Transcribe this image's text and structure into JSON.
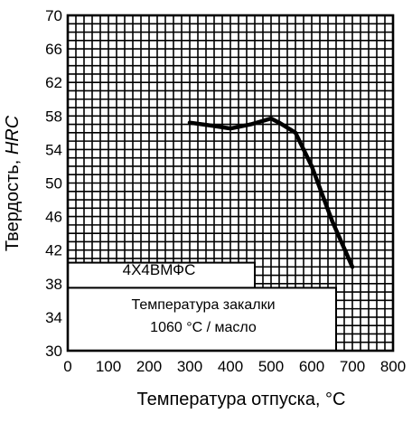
{
  "colors": {
    "background": "#ffffff",
    "ink": "#000000"
  },
  "chart_data": {
    "type": "line",
    "title": "",
    "xlabel": "Температура отпуска, °C",
    "ylabel_prefix": "Твердость, ",
    "ylabel_unit": "HRC",
    "xlim": [
      0,
      800
    ],
    "ylim": [
      30,
      70
    ],
    "x_ticks": [
      "0",
      "100",
      "200",
      "300",
      "400",
      "500",
      "600",
      "700",
      "800"
    ],
    "y_ticks": [
      "30",
      "34",
      "38",
      "42",
      "46",
      "50",
      "54",
      "58",
      "62",
      "66",
      "70"
    ],
    "grid": true,
    "series": [
      {
        "x": [
          300,
          360,
          400,
          450,
          500,
          520,
          560,
          600,
          650,
          700
        ],
        "y": [
          57.2,
          56.8,
          56.5,
          57.0,
          57.7,
          57.2,
          56.0,
          52.0,
          45.5,
          40.0
        ]
      }
    ],
    "annotations": {
      "steel_grade": "4Х4ВМФС",
      "quench_line1": "Температура закалки",
      "quench_line2": "1060 °С / масло"
    }
  }
}
